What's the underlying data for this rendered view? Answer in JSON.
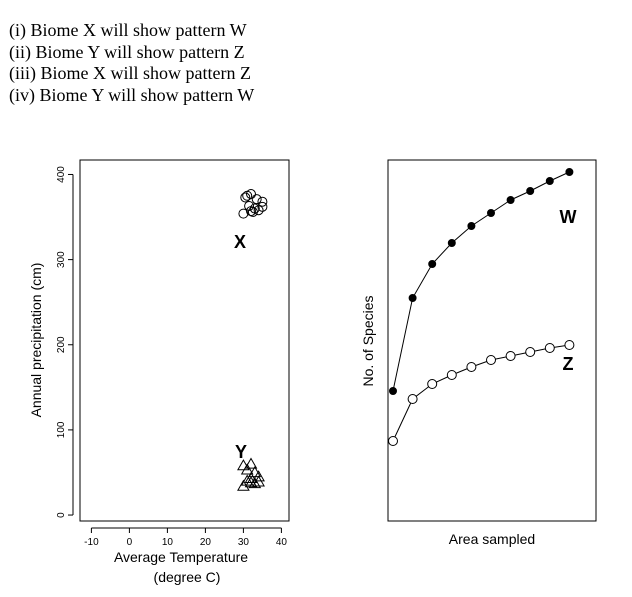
{
  "statements": [
    "(i) Biome X will show pattern W",
    "(ii) Biome Y will show pattern Z",
    "(iii) Biome X will show pattern Z",
    "(iv) Biome Y will show pattern W"
  ],
  "chart_data": [
    {
      "type": "scatter",
      "title": "",
      "xlabel": "Average Temperature",
      "xlabel_line2": "(degree C)",
      "ylabel": "Annual precipitation (cm)",
      "xlim": [
        -13,
        42
      ],
      "ylim": [
        -7,
        417
      ],
      "xticks": [
        -10,
        0,
        10,
        20,
        30,
        40
      ],
      "yticks": [
        0,
        100,
        200,
        300,
        400
      ],
      "grid": false,
      "series": [
        {
          "name": "X",
          "marker": "circle",
          "points": [
            [
              31,
              375
            ],
            [
              32,
              377
            ],
            [
              30.5,
              373
            ],
            [
              33.5,
              371
            ],
            [
              35,
              368
            ],
            [
              31.5,
              363
            ],
            [
              35,
              362
            ],
            [
              33,
              360
            ],
            [
              32,
              357
            ],
            [
              30,
              354
            ],
            [
              32.5,
              356
            ],
            [
              34,
              358
            ]
          ]
        },
        {
          "name": "Y",
          "marker": "triangle",
          "points": [
            [
              30,
              58
            ],
            [
              32,
              60
            ],
            [
              31,
              53
            ],
            [
              33,
              50
            ],
            [
              34,
              45
            ],
            [
              32,
              43
            ],
            [
              31,
              40
            ],
            [
              33,
              37
            ],
            [
              30,
              34
            ],
            [
              32,
              38
            ],
            [
              34,
              39
            ]
          ]
        }
      ]
    },
    {
      "type": "line",
      "title": "",
      "xlabel": "Area sampled",
      "ylabel": "No. of Species",
      "xticks": [],
      "yticks": [],
      "grid": false,
      "x": [
        1,
        2,
        3,
        4,
        5,
        6,
        7,
        8,
        9,
        10
      ],
      "series": [
        {
          "name": "W",
          "marker": "filled-circle",
          "values": [
            150,
            243,
            277,
            298,
            315,
            328,
            341,
            350,
            360,
            369
          ]
        },
        {
          "name": "Z",
          "marker": "open-circle",
          "values": [
            100,
            142,
            157,
            166,
            174,
            181,
            185,
            189,
            193,
            196
          ]
        }
      ]
    }
  ]
}
